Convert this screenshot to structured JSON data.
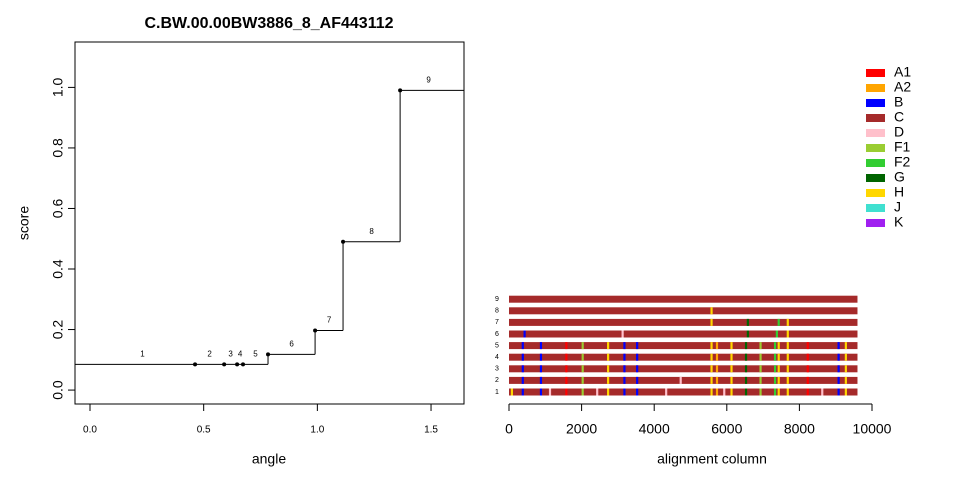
{
  "chart_data": [
    {
      "type": "step",
      "title": "C.BW.00.00BW3886_8_AF443112",
      "xlabel": "angle",
      "ylabel": "score",
      "x": [
        0,
        0.462,
        0.59,
        0.647,
        0.673,
        0.783,
        0.99,
        1.113,
        1.364
      ],
      "values": [
        0.085,
        0.085,
        0.085,
        0.085,
        0.085,
        0.118,
        0.197,
        0.49,
        0.99
      ],
      "point_labels": [
        "1",
        "2",
        "3",
        "4",
        "5",
        "6",
        "7",
        "8",
        "9"
      ],
      "color": "#000000",
      "xlim": [
        -0.066,
        1.645
      ],
      "ylim": [
        -0.046,
        1.15
      ],
      "xticks": [
        {
          "value": 0,
          "label": "0.0"
        },
        {
          "value": 0.5,
          "label": "0.5"
        },
        {
          "value": 1,
          "label": "1.0"
        },
        {
          "value": 1.5,
          "label": "1.5"
        }
      ],
      "yticks": [
        {
          "value": 0,
          "label": "0.0"
        },
        {
          "value": 0.2,
          "label": "0.2"
        },
        {
          "value": 0.4,
          "label": "0.4"
        },
        {
          "value": 0.6,
          "label": "0.6"
        },
        {
          "value": 0.8,
          "label": "0.8"
        },
        {
          "value": 1,
          "label": "1.0"
        }
      ]
    },
    {
      "type": "alignment",
      "xlabel": "alignment column",
      "xlim": [
        0,
        10000
      ],
      "xticks": [
        0,
        2000,
        4000,
        6000,
        8000,
        10000
      ],
      "legend": [
        {
          "name": "A1",
          "color": "#ff0000"
        },
        {
          "name": "A2",
          "color": "#ffa500"
        },
        {
          "name": "B",
          "color": "#0000ff"
        },
        {
          "name": "C",
          "color": "#a52a2a"
        },
        {
          "name": "D",
          "color": "#ffc0cb"
        },
        {
          "name": "F1",
          "color": "#9acd32"
        },
        {
          "name": "F2",
          "color": "#32cd32"
        },
        {
          "name": "G",
          "color": "#006400"
        },
        {
          "name": "H",
          "color": "#ffd700"
        },
        {
          "name": "J",
          "color": "#40e0d0"
        },
        {
          "name": "K",
          "color": "#a020f0"
        }
      ],
      "rows": [
        {
          "label": "1",
          "segments": [
            [
              0,
              9600,
              "C"
            ],
            [
              50,
              110,
              "H"
            ],
            [
              350,
              410,
              "B"
            ],
            [
              850,
              910,
              "B"
            ],
            [
              1100,
              1160,
              "D"
            ],
            [
              1550,
              1610,
              "A1"
            ],
            [
              2000,
              2060,
              "F1"
            ],
            [
              2400,
              2460,
              "D"
            ],
            [
              2700,
              2760,
              "H"
            ],
            [
              3150,
              3210,
              "B"
            ],
            [
              3500,
              3560,
              "B"
            ],
            [
              4300,
              4360,
              "D"
            ],
            [
              5550,
              5610,
              "H"
            ],
            [
              5700,
              5760,
              "A2"
            ],
            [
              5900,
              5960,
              "D"
            ],
            [
              6100,
              6160,
              "H"
            ],
            [
              6500,
              6560,
              "G"
            ],
            [
              6900,
              6960,
              "F1"
            ],
            [
              7300,
              7360,
              "F2"
            ],
            [
              7400,
              7460,
              "H"
            ],
            [
              7650,
              7710,
              "H"
            ],
            [
              8200,
              8260,
              "A1"
            ],
            [
              8600,
              8660,
              "D"
            ],
            [
              9050,
              9110,
              "B"
            ],
            [
              9250,
              9310,
              "H"
            ]
          ]
        },
        {
          "label": "2",
          "segments": [
            [
              0,
              9600,
              "C"
            ],
            [
              350,
              410,
              "B"
            ],
            [
              850,
              910,
              "B"
            ],
            [
              1550,
              1610,
              "A1"
            ],
            [
              2000,
              2060,
              "F1"
            ],
            [
              2700,
              2760,
              "H"
            ],
            [
              3150,
              3210,
              "B"
            ],
            [
              3500,
              3560,
              "B"
            ],
            [
              4700,
              4760,
              "D"
            ],
            [
              5550,
              5610,
              "H"
            ],
            [
              5700,
              5760,
              "A2"
            ],
            [
              6100,
              6160,
              "H"
            ],
            [
              6500,
              6560,
              "G"
            ],
            [
              6900,
              6960,
              "F1"
            ],
            [
              7300,
              7360,
              "F2"
            ],
            [
              7400,
              7460,
              "H"
            ],
            [
              7650,
              7710,
              "H"
            ],
            [
              8200,
              8260,
              "A1"
            ],
            [
              9050,
              9110,
              "B"
            ],
            [
              9250,
              9310,
              "H"
            ]
          ]
        },
        {
          "label": "3",
          "segments": [
            [
              0,
              9600,
              "C"
            ],
            [
              350,
              410,
              "B"
            ],
            [
              850,
              910,
              "B"
            ],
            [
              1550,
              1610,
              "A1"
            ],
            [
              2000,
              2060,
              "F1"
            ],
            [
              2700,
              2760,
              "H"
            ],
            [
              3150,
              3210,
              "B"
            ],
            [
              3500,
              3560,
              "B"
            ],
            [
              5550,
              5610,
              "H"
            ],
            [
              5700,
              5760,
              "A2"
            ],
            [
              6100,
              6160,
              "H"
            ],
            [
              6500,
              6560,
              "G"
            ],
            [
              6900,
              6960,
              "F1"
            ],
            [
              7300,
              7360,
              "F2"
            ],
            [
              7400,
              7460,
              "H"
            ],
            [
              7650,
              7710,
              "H"
            ],
            [
              8200,
              8260,
              "A1"
            ],
            [
              9050,
              9110,
              "B"
            ],
            [
              9250,
              9310,
              "H"
            ]
          ]
        },
        {
          "label": "4",
          "segments": [
            [
              0,
              9600,
              "C"
            ],
            [
              350,
              410,
              "B"
            ],
            [
              850,
              910,
              "B"
            ],
            [
              1550,
              1610,
              "A1"
            ],
            [
              2000,
              2060,
              "F1"
            ],
            [
              2700,
              2760,
              "H"
            ],
            [
              3150,
              3210,
              "B"
            ],
            [
              3500,
              3560,
              "B"
            ],
            [
              5550,
              5610,
              "H"
            ],
            [
              5700,
              5760,
              "A2"
            ],
            [
              6100,
              6160,
              "H"
            ],
            [
              6500,
              6560,
              "G"
            ],
            [
              6900,
              6960,
              "F1"
            ],
            [
              7300,
              7360,
              "F2"
            ],
            [
              7400,
              7460,
              "H"
            ],
            [
              7650,
              7710,
              "H"
            ],
            [
              8200,
              8260,
              "A1"
            ],
            [
              9050,
              9110,
              "B"
            ],
            [
              9250,
              9310,
              "H"
            ]
          ]
        },
        {
          "label": "5",
          "segments": [
            [
              0,
              9600,
              "C"
            ],
            [
              350,
              410,
              "B"
            ],
            [
              850,
              910,
              "B"
            ],
            [
              1550,
              1610,
              "A1"
            ],
            [
              2000,
              2060,
              "F1"
            ],
            [
              2700,
              2760,
              "H"
            ],
            [
              3150,
              3210,
              "B"
            ],
            [
              3500,
              3560,
              "B"
            ],
            [
              5550,
              5610,
              "H"
            ],
            [
              5700,
              5760,
              "A2"
            ],
            [
              6100,
              6160,
              "H"
            ],
            [
              6500,
              6560,
              "G"
            ],
            [
              6900,
              6960,
              "F1"
            ],
            [
              7300,
              7360,
              "F2"
            ],
            [
              7400,
              7460,
              "H"
            ],
            [
              7650,
              7710,
              "H"
            ],
            [
              8200,
              8260,
              "A1"
            ],
            [
              9050,
              9110,
              "B"
            ],
            [
              9250,
              9310,
              "H"
            ]
          ]
        },
        {
          "label": "6",
          "segments": [
            [
              0,
              9600,
              "C"
            ],
            [
              400,
              460,
              "B"
            ],
            [
              3100,
              3160,
              "D"
            ],
            [
              6550,
              6610,
              "G"
            ],
            [
              7350,
              7410,
              "F2"
            ],
            [
              7650,
              7710,
              "H"
            ]
          ]
        },
        {
          "label": "7",
          "segments": [
            [
              0,
              9600,
              "C"
            ],
            [
              5550,
              5610,
              "H"
            ],
            [
              6550,
              6610,
              "G"
            ],
            [
              7400,
              7460,
              "F2"
            ],
            [
              7650,
              7710,
              "H"
            ]
          ]
        },
        {
          "label": "8",
          "segments": [
            [
              0,
              9600,
              "C"
            ],
            [
              5550,
              5610,
              "H"
            ]
          ]
        },
        {
          "label": "9",
          "segments": [
            [
              0,
              9600,
              "C"
            ]
          ]
        }
      ]
    }
  ]
}
